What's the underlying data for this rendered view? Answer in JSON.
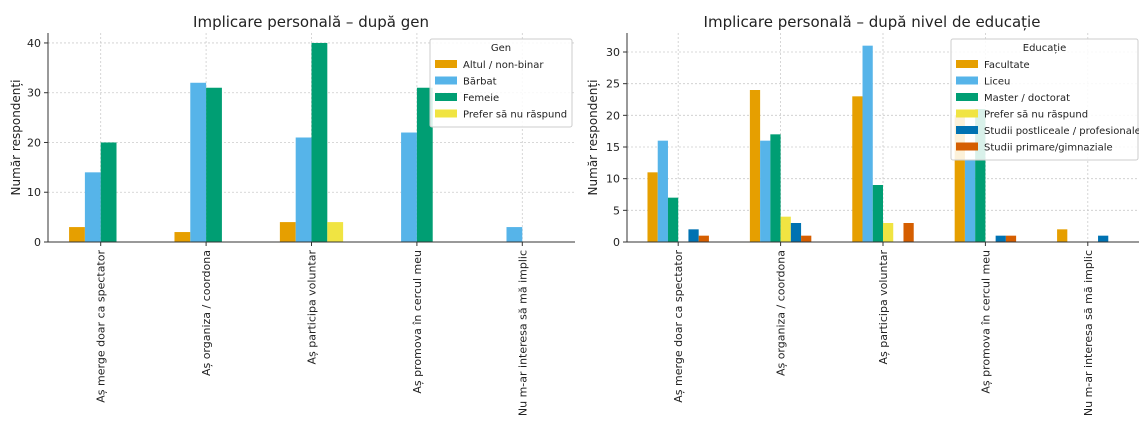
{
  "chart_data": [
    {
      "type": "bar",
      "title": "Implicare personală – după gen",
      "xlabel": "",
      "ylabel": "Număr respondenți",
      "ylim": [
        0,
        42
      ],
      "yticks": [
        0,
        10,
        20,
        30,
        40
      ],
      "grid": true,
      "legend": {
        "title": "Gen",
        "position": "top-right"
      },
      "categories": [
        "Aș merge doar ca spectator",
        "Aș organiza / coordona",
        "Aș participa voluntar",
        "Aș promova în cercul meu",
        "Nu m-ar interesa să mă implic"
      ],
      "series": [
        {
          "name": "Altul / non-binar",
          "color": "#E69F00",
          "values": [
            3,
            2,
            4,
            0,
            0
          ]
        },
        {
          "name": "Bărbat",
          "color": "#56B4E9",
          "values": [
            14,
            32,
            21,
            22,
            3
          ]
        },
        {
          "name": "Femeie",
          "color": "#009E73",
          "values": [
            20,
            31,
            40,
            31,
            0
          ]
        },
        {
          "name": "Prefer să nu răspund",
          "color": "#F0E442",
          "values": [
            0,
            0,
            4,
            0,
            0
          ]
        }
      ]
    },
    {
      "type": "bar",
      "title": "Implicare personală – după nivel de educație",
      "xlabel": "",
      "ylabel": "Număr respondenți",
      "ylim": [
        0,
        33
      ],
      "yticks": [
        0,
        5,
        10,
        15,
        20,
        25,
        30
      ],
      "grid": true,
      "legend": {
        "title": "Educație",
        "position": "top-right"
      },
      "categories": [
        "Aș merge doar ca spectator",
        "Aș organiza / coordona",
        "Aș participa voluntar",
        "Aș promova în cercul meu",
        "Nu m-ar interesa să mă implic"
      ],
      "series": [
        {
          "name": "Facultate",
          "color": "#E69F00",
          "values": [
            11,
            24,
            23,
            20,
            2
          ]
        },
        {
          "name": "Liceu",
          "color": "#56B4E9",
          "values": [
            16,
            16,
            31,
            13,
            0
          ]
        },
        {
          "name": "Master / doctorat",
          "color": "#009E73",
          "values": [
            7,
            17,
            9,
            21,
            0
          ]
        },
        {
          "name": "Prefer să nu răspund",
          "color": "#F0E442",
          "values": [
            0,
            4,
            3,
            0,
            0
          ]
        },
        {
          "name": "Studii postliceale / profesionale",
          "color": "#0072B2",
          "values": [
            2,
            3,
            0,
            1,
            1
          ]
        },
        {
          "name": "Studii primare/gimnaziale",
          "color": "#D55E00",
          "values": [
            1,
            1,
            3,
            1,
            0
          ]
        }
      ]
    }
  ]
}
